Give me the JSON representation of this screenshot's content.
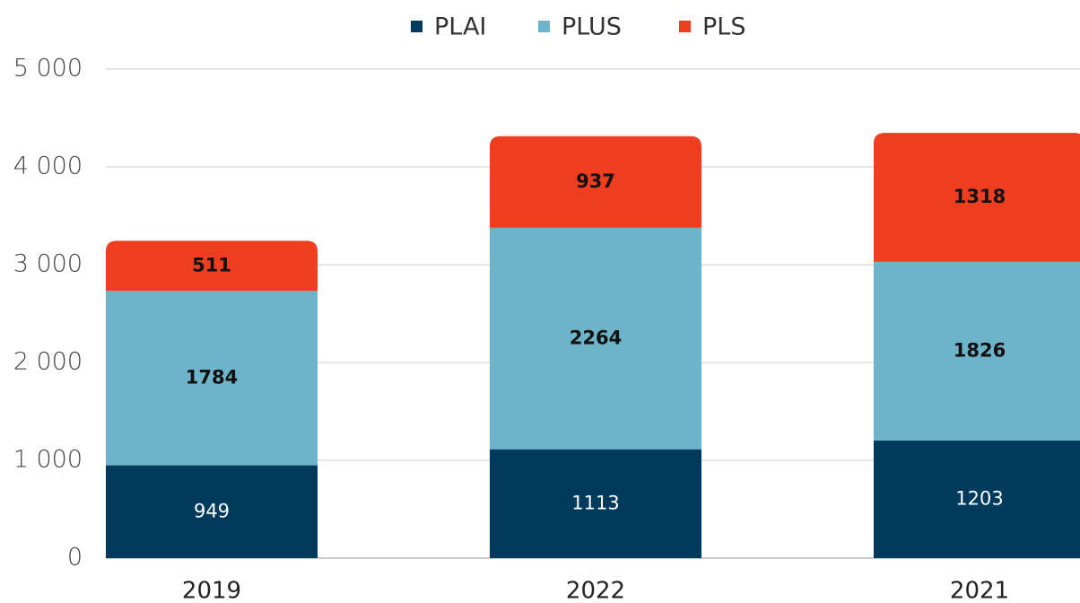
{
  "chart_data": {
    "type": "stacked_bar",
    "categories": [
      "2019",
      "2022",
      "2021"
    ],
    "series": [
      {
        "name": "PLAI",
        "color": "#003a5d",
        "values": [
          949,
          1113,
          1203
        ]
      },
      {
        "name": "PLUS",
        "color": "#6db3c9",
        "values": [
          1784,
          2264,
          1826
        ]
      },
      {
        "name": "PLS",
        "color": "#ee3d1f",
        "values": [
          511,
          937,
          1318
        ]
      }
    ],
    "ylim": [
      0,
      5000
    ],
    "yticks": [
      0,
      {
        "value": 1000,
        "label": "1 000"
      },
      {
        "value": 2000,
        "label": "2 000"
      },
      {
        "value": 3000,
        "label": "3 000"
      },
      {
        "value": 4000,
        "label": "4 000"
      },
      {
        "value": 5000,
        "label": "5 000"
      }
    ],
    "grid": true,
    "legend": "top"
  }
}
